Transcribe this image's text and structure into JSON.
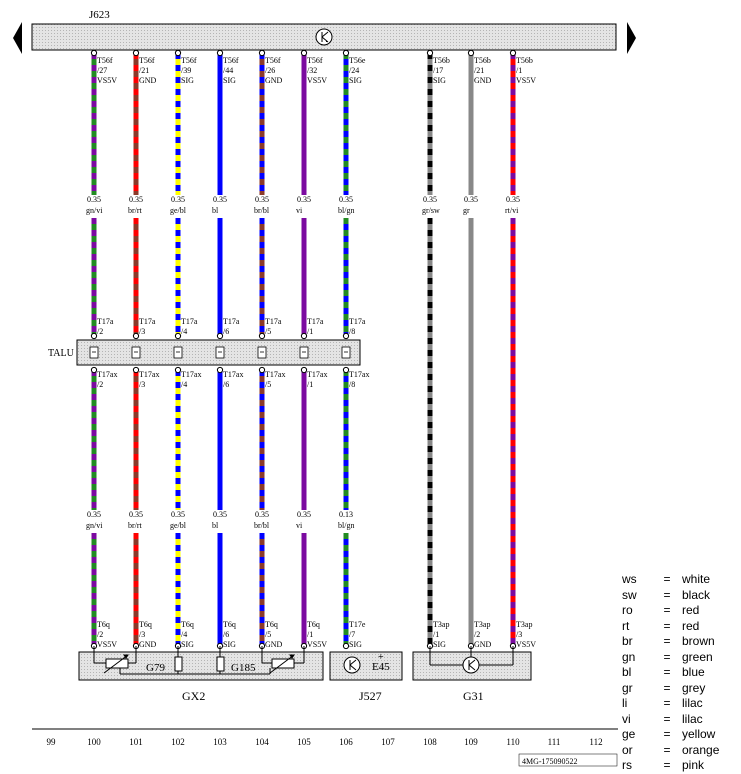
{
  "control_unit": "J623",
  "talu_label": "TALU",
  "bottom_connectors": {
    "left_components": [
      "G79",
      "G185"
    ],
    "middle_component": "E45",
    "middle_mark": "+"
  },
  "component_labels": [
    "GX2",
    "J527",
    "G31"
  ],
  "wires": [
    {
      "col": "100",
      "top_pin": [
        "T56f",
        "/27",
        "VS5V"
      ],
      "top_gauge": "0.35",
      "top_color": "gn/vi",
      "t17a": [
        "T17a",
        "/2"
      ],
      "t17ax": [
        "T17ax",
        "/2"
      ],
      "bot_gauge": "0.35",
      "bot_color": "gn/vi",
      "bot_pin": [
        "T6q",
        "/2",
        "VS5V"
      ],
      "c1": "#228b22",
      "c2": "#7b0aa0"
    },
    {
      "col": "101",
      "top_pin": [
        "T56f",
        "/21",
        "GND"
      ],
      "top_gauge": "0.35",
      "top_color": "br/rt",
      "t17a": [
        "T17a",
        "/3"
      ],
      "t17ax": [
        "T17ax",
        "/3"
      ],
      "bot_gauge": "0.35",
      "bot_color": "br/rt",
      "bot_pin": [
        "T6q",
        "/3",
        "GND"
      ],
      "c1": "#8b3a2a",
      "c2": "#ff0000"
    },
    {
      "col": "102",
      "top_pin": [
        "T56f",
        "/39",
        "SIG"
      ],
      "top_gauge": "0.35",
      "top_color": "ge/bl",
      "t17a": [
        "T17a",
        "/4"
      ],
      "t17ax": [
        "T17ax",
        "/4"
      ],
      "bot_gauge": "0.35",
      "bot_color": "ge/bl",
      "bot_pin": [
        "T6q",
        "/4",
        "SIG"
      ],
      "c1": "#ffff00",
      "c2": "#0000ff"
    },
    {
      "col": "103",
      "top_pin": [
        "T56f",
        "/44",
        "SIG"
      ],
      "top_gauge": "0.35",
      "top_color": "bl",
      "t17a": [
        "T17a",
        "/6"
      ],
      "t17ax": [
        "T17ax",
        "/6"
      ],
      "bot_gauge": "0.35",
      "bot_color": "bl",
      "bot_pin": [
        "T6q",
        "/6",
        "SIG"
      ],
      "c1": "#0000ff",
      "c2": "#0000ff"
    },
    {
      "col": "104",
      "top_pin": [
        "T56f",
        "/26",
        "GND"
      ],
      "top_gauge": "0.35",
      "top_color": "br/bl",
      "t17a": [
        "T17a",
        "/5"
      ],
      "t17ax": [
        "T17ax",
        "/5"
      ],
      "bot_gauge": "0.35",
      "bot_color": "br/bl",
      "bot_pin": [
        "T6q",
        "/5",
        "GND"
      ],
      "c1": "#8b3a2a",
      "c2": "#0000ff"
    },
    {
      "col": "105",
      "top_pin": [
        "T56f",
        "/32",
        "VS5V"
      ],
      "top_gauge": "0.35",
      "top_color": "vi",
      "t17a": [
        "T17a",
        "/1"
      ],
      "t17ax": [
        "T17ax",
        "/1"
      ],
      "bot_gauge": "0.35",
      "bot_color": "vi",
      "bot_pin": [
        "T6q",
        "/1",
        "VS5V"
      ],
      "c1": "#7b0aa0",
      "c2": "#7b0aa0"
    },
    {
      "col": "106",
      "top_pin": [
        "T56e",
        "/24",
        "SIG"
      ],
      "top_gauge": "0.35",
      "top_color": "bl/gn",
      "t17a": [
        "T17a",
        "/8"
      ],
      "t17ax": [
        "T17ax",
        "/8"
      ],
      "bot_gauge": "0.13",
      "bot_color": "bl/gn",
      "bot_pin": [
        "T17e",
        "/7",
        "SIG"
      ],
      "c1": "#0000ff",
      "c2": "#228b22"
    },
    {
      "col": "108",
      "top_pin": [
        "T56b",
        "/17",
        "SIG"
      ],
      "top_gauge": "0.35",
      "top_color": "gr/sw",
      "t17a": null,
      "t17ax": null,
      "bot_gauge": "",
      "bot_color": "",
      "bot_pin": [
        "T3ap",
        "/1",
        "SIG"
      ],
      "c1": "#888888",
      "c2": "#000000"
    },
    {
      "col": "109",
      "top_pin": [
        "T56b",
        "/21",
        "GND"
      ],
      "top_gauge": "0.35",
      "top_color": "gr",
      "t17a": null,
      "t17ax": null,
      "bot_gauge": "",
      "bot_color": "",
      "bot_pin": [
        "T3ap",
        "/2",
        "GND"
      ],
      "c1": "#888888",
      "c2": "#888888"
    },
    {
      "col": "110",
      "top_pin": [
        "T56b",
        "/1",
        "VS5V"
      ],
      "top_gauge": "0.35",
      "top_color": "rt/vi",
      "t17a": null,
      "t17ax": null,
      "bot_gauge": "",
      "bot_color": "",
      "bot_pin": [
        "T3ap",
        "/3",
        "VS5V"
      ],
      "c1": "#ff0000",
      "c2": "#7b0aa0"
    }
  ],
  "columns": [
    "99",
    "100",
    "101",
    "102",
    "103",
    "104",
    "105",
    "106",
    "107",
    "108",
    "109",
    "110",
    "111",
    "112"
  ],
  "legend": [
    {
      "code": "ws",
      "eq": "=",
      "name": "white"
    },
    {
      "code": "sw",
      "eq": "=",
      "name": "black"
    },
    {
      "code": "ro",
      "eq": "=",
      "name": "red"
    },
    {
      "code": "rt",
      "eq": "=",
      "name": "red"
    },
    {
      "code": "br",
      "eq": "=",
      "name": "brown"
    },
    {
      "code": "gn",
      "eq": "=",
      "name": "green"
    },
    {
      "code": "bl",
      "eq": "=",
      "name": "blue"
    },
    {
      "code": "gr",
      "eq": "=",
      "name": "grey"
    },
    {
      "code": "li",
      "eq": "=",
      "name": "lilac"
    },
    {
      "code": "vi",
      "eq": "=",
      "name": "lilac"
    },
    {
      "code": "ge",
      "eq": "=",
      "name": "yellow"
    },
    {
      "code": "or",
      "eq": "=",
      "name": "orange"
    },
    {
      "code": "rs",
      "eq": "=",
      "name": "pink"
    }
  ],
  "drawing_id": "4MG-175090522"
}
